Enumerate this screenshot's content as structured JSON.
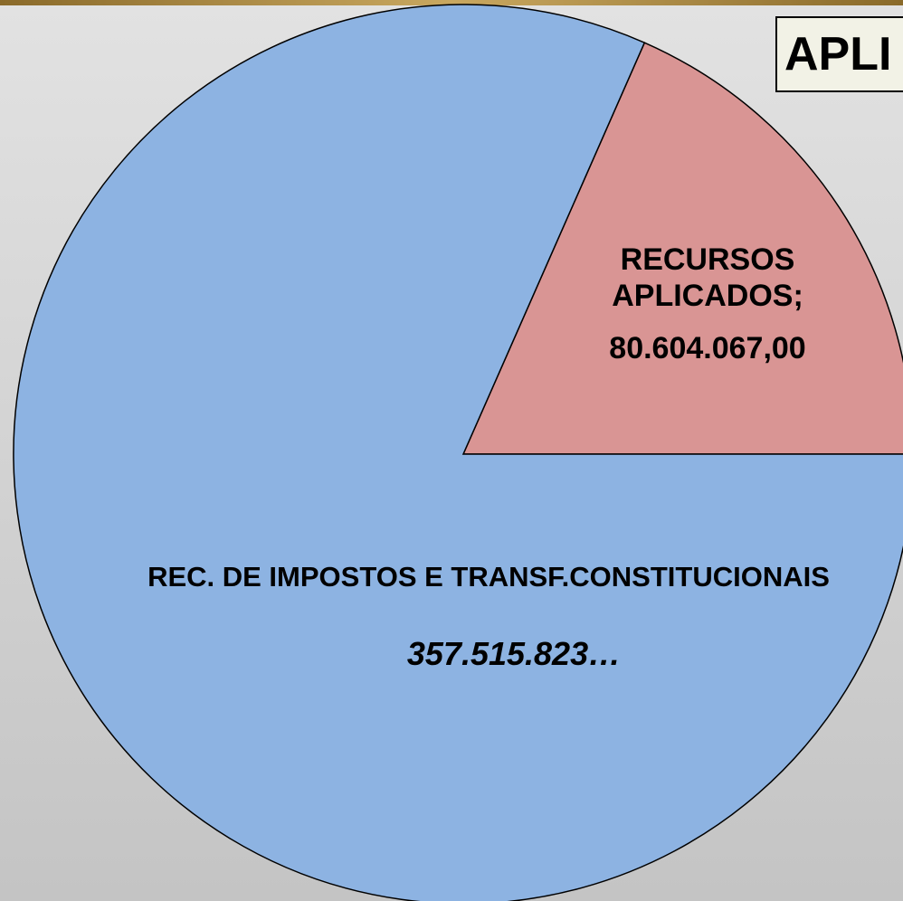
{
  "chart_data": {
    "type": "pie",
    "title": "APLI",
    "categories": [
      "RECURSOS APLICADOS;",
      "REC. DE IMPOSTOS E TRANSF.CONSTITUCIONAIS"
    ],
    "values": [
      80604067,
      357515823
    ],
    "value_labels": [
      "80.604.067,00",
      "357.515.823…"
    ],
    "colors": [
      "#d99594",
      "#8db3e2"
    ]
  }
}
